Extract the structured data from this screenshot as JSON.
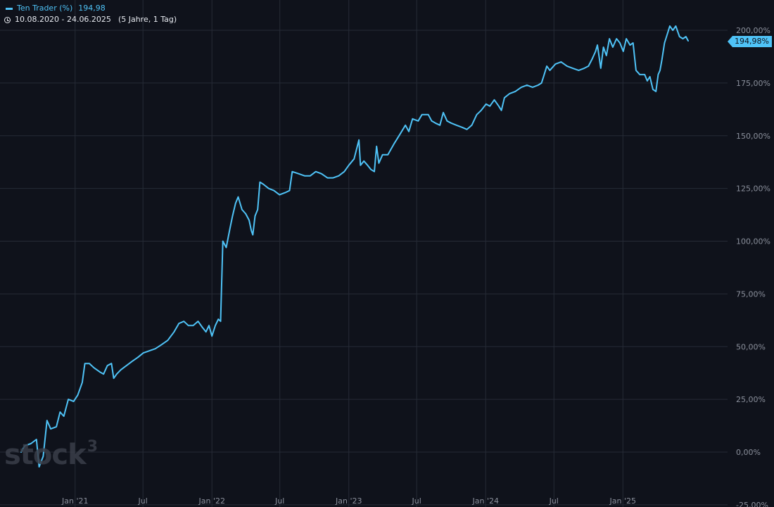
{
  "legend": {
    "series_label": "Ten Trader (%)",
    "last_value": "194,98",
    "date_range": "10.08.2020 - 24.06.2025",
    "period": "(5 Jahre, 1 Tag)"
  },
  "watermark": {
    "text": "stock",
    "sup": "3"
  },
  "last_badge": "194,98%",
  "colors": {
    "background": "#0f121b",
    "line": "#4fc3f7",
    "grid": "#262b36",
    "axis_text": "#8b909c"
  },
  "chart_data": {
    "type": "line",
    "title": "",
    "xlabel": "",
    "ylabel": "",
    "ylim": [
      -25,
      205
    ],
    "x_ticks": [
      "Jan '21",
      "Jul",
      "Jan '22",
      "Jul",
      "Jan '23",
      "Jul",
      "Jan '24",
      "Jul",
      "Jan '25"
    ],
    "y_tick_values": [
      -25,
      0,
      25,
      50,
      75,
      100,
      125,
      150,
      175,
      200
    ],
    "y_tick_labels": [
      "-25,00%",
      "0,00%",
      "25,00%",
      "50,00%",
      "75,00%",
      "100,00%",
      "125,00%",
      "150,00%",
      "175,00%",
      "200,00%"
    ],
    "grid": true,
    "legend_position": "top-left",
    "series": [
      {
        "name": "Ten Trader (%)",
        "points": [
          [
            "2020-08-10",
            0
          ],
          [
            "2020-08-20",
            3
          ],
          [
            "2020-09-05",
            4
          ],
          [
            "2020-09-20",
            6
          ],
          [
            "2020-09-27",
            -7
          ],
          [
            "2020-10-08",
            -2
          ],
          [
            "2020-10-18",
            15
          ],
          [
            "2020-10-28",
            11
          ],
          [
            "2020-11-12",
            12
          ],
          [
            "2020-11-22",
            19
          ],
          [
            "2020-12-02",
            17
          ],
          [
            "2020-12-14",
            25
          ],
          [
            "2020-12-28",
            24
          ],
          [
            "2021-01-08",
            27
          ],
          [
            "2021-01-20",
            33
          ],
          [
            "2021-01-27",
            42
          ],
          [
            "2021-02-08",
            42
          ],
          [
            "2021-02-20",
            40
          ],
          [
            "2021-03-08",
            38
          ],
          [
            "2021-03-18",
            37
          ],
          [
            "2021-03-28",
            41
          ],
          [
            "2021-04-08",
            42
          ],
          [
            "2021-04-14",
            35
          ],
          [
            "2021-04-22",
            37
          ],
          [
            "2021-05-03",
            39
          ],
          [
            "2021-05-18",
            41
          ],
          [
            "2021-06-02",
            43
          ],
          [
            "2021-06-18",
            45
          ],
          [
            "2021-07-02",
            47
          ],
          [
            "2021-07-18",
            48
          ],
          [
            "2021-08-03",
            49
          ],
          [
            "2021-08-20",
            51
          ],
          [
            "2021-09-05",
            53
          ],
          [
            "2021-09-22",
            57
          ],
          [
            "2021-10-05",
            61
          ],
          [
            "2021-10-18",
            62
          ],
          [
            "2021-10-30",
            60
          ],
          [
            "2021-11-12",
            60
          ],
          [
            "2021-11-25",
            62
          ],
          [
            "2021-12-07",
            59
          ],
          [
            "2021-12-16",
            57
          ],
          [
            "2021-12-24",
            60
          ],
          [
            "2022-01-01",
            55
          ],
          [
            "2022-01-10",
            60
          ],
          [
            "2022-01-18",
            63
          ],
          [
            "2022-01-24",
            62
          ],
          [
            "2022-01-30",
            100
          ],
          [
            "2022-02-08",
            97
          ],
          [
            "2022-02-18",
            106
          ],
          [
            "2022-02-25",
            112
          ],
          [
            "2022-03-05",
            118
          ],
          [
            "2022-03-12",
            121
          ],
          [
            "2022-03-22",
            115
          ],
          [
            "2022-04-01",
            113
          ],
          [
            "2022-04-10",
            110
          ],
          [
            "2022-04-16",
            105
          ],
          [
            "2022-04-20",
            103
          ],
          [
            "2022-04-26",
            112
          ],
          [
            "2022-05-03",
            115
          ],
          [
            "2022-05-09",
            128
          ],
          [
            "2022-05-18",
            127
          ],
          [
            "2022-06-01",
            125
          ],
          [
            "2022-06-15",
            124
          ],
          [
            "2022-06-30",
            122
          ],
          [
            "2022-07-15",
            123
          ],
          [
            "2022-07-27",
            124
          ],
          [
            "2022-08-03",
            133
          ],
          [
            "2022-08-20",
            132
          ],
          [
            "2022-09-05",
            131
          ],
          [
            "2022-09-20",
            131
          ],
          [
            "2022-10-05",
            133
          ],
          [
            "2022-10-20",
            132
          ],
          [
            "2022-11-05",
            130
          ],
          [
            "2022-11-20",
            130
          ],
          [
            "2022-12-05",
            131
          ],
          [
            "2022-12-20",
            133
          ],
          [
            "2023-01-01",
            136
          ],
          [
            "2023-01-15",
            139
          ],
          [
            "2023-01-28",
            148
          ],
          [
            "2023-02-01",
            136
          ],
          [
            "2023-02-10",
            138
          ],
          [
            "2023-02-20",
            136
          ],
          [
            "2023-03-01",
            134
          ],
          [
            "2023-03-10",
            133
          ],
          [
            "2023-03-16",
            145
          ],
          [
            "2023-03-22",
            137
          ],
          [
            "2023-04-01",
            141
          ],
          [
            "2023-04-15",
            141
          ],
          [
            "2023-05-01",
            146
          ],
          [
            "2023-05-15",
            150
          ],
          [
            "2023-06-01",
            155
          ],
          [
            "2023-06-10",
            152
          ],
          [
            "2023-06-20",
            158
          ],
          [
            "2023-07-05",
            157
          ],
          [
            "2023-07-15",
            160
          ],
          [
            "2023-08-01",
            160
          ],
          [
            "2023-08-10",
            157
          ],
          [
            "2023-08-20",
            156
          ],
          [
            "2023-09-01",
            155
          ],
          [
            "2023-09-10",
            161
          ],
          [
            "2023-09-20",
            157
          ],
          [
            "2023-10-01",
            156
          ],
          [
            "2023-10-15",
            155
          ],
          [
            "2023-10-30",
            154
          ],
          [
            "2023-11-12",
            153
          ],
          [
            "2023-11-25",
            155
          ],
          [
            "2023-12-08",
            160
          ],
          [
            "2023-12-20",
            162
          ],
          [
            "2024-01-02",
            165
          ],
          [
            "2024-01-12",
            164
          ],
          [
            "2024-01-24",
            167
          ],
          [
            "2024-02-05",
            164
          ],
          [
            "2024-02-12",
            162
          ],
          [
            "2024-02-20",
            168
          ],
          [
            "2024-03-05",
            170
          ],
          [
            "2024-03-20",
            171
          ],
          [
            "2024-04-05",
            173
          ],
          [
            "2024-04-20",
            174
          ],
          [
            "2024-05-05",
            173
          ],
          [
            "2024-05-20",
            174
          ],
          [
            "2024-05-29",
            175
          ],
          [
            "2024-06-05",
            179
          ],
          [
            "2024-06-12",
            183
          ],
          [
            "2024-06-20",
            181
          ],
          [
            "2024-07-05",
            184
          ],
          [
            "2024-07-20",
            185
          ],
          [
            "2024-08-05",
            183
          ],
          [
            "2024-08-20",
            182
          ],
          [
            "2024-09-05",
            181
          ],
          [
            "2024-09-20",
            182
          ],
          [
            "2024-10-01",
            183
          ],
          [
            "2024-10-10",
            186
          ],
          [
            "2024-10-20",
            190
          ],
          [
            "2024-10-25",
            193
          ],
          [
            "2024-10-29",
            188
          ],
          [
            "2024-11-03",
            182
          ],
          [
            "2024-11-10",
            192
          ],
          [
            "2024-11-18",
            188
          ],
          [
            "2024-11-26",
            196
          ],
          [
            "2024-12-05",
            192
          ],
          [
            "2024-12-15",
            196
          ],
          [
            "2024-12-24",
            194
          ],
          [
            "2025-01-02",
            190
          ],
          [
            "2025-01-10",
            196
          ],
          [
            "2025-01-20",
            193
          ],
          [
            "2025-01-28",
            194
          ],
          [
            "2025-02-05",
            181
          ],
          [
            "2025-02-15",
            179
          ],
          [
            "2025-02-28",
            179
          ],
          [
            "2025-03-07",
            176
          ],
          [
            "2025-03-14",
            178
          ],
          [
            "2025-03-22",
            172
          ],
          [
            "2025-03-30",
            171
          ],
          [
            "2025-04-05",
            179
          ],
          [
            "2025-04-10",
            181
          ],
          [
            "2025-04-15",
            186
          ],
          [
            "2025-04-22",
            194
          ],
          [
            "2025-04-29",
            198
          ],
          [
            "2025-05-06",
            202
          ],
          [
            "2025-05-14",
            200
          ],
          [
            "2025-05-22",
            202
          ],
          [
            "2025-06-01",
            197
          ],
          [
            "2025-06-10",
            196
          ],
          [
            "2025-06-18",
            197
          ],
          [
            "2025-06-24",
            194.98
          ]
        ]
      }
    ]
  }
}
